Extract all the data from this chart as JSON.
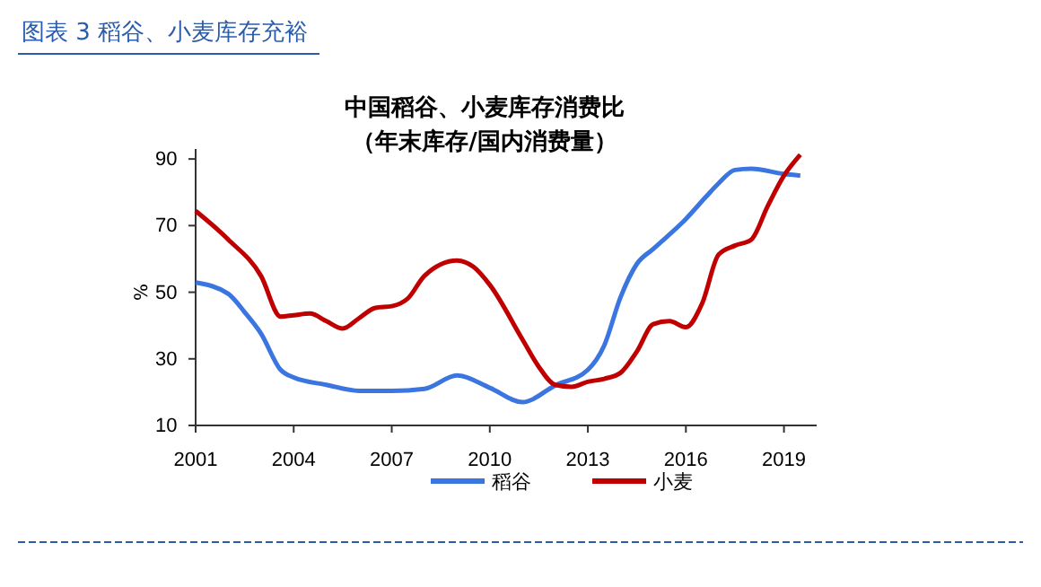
{
  "chart_data": {
    "type": "line",
    "title": "中国稻谷、小麦库存消费比",
    "subtitle": "（年末库存/国内消费量）",
    "ylabel": "%",
    "annotations": [
      "图表 3 稻谷、小麦库存充裕"
    ],
    "xlim": [
      2001,
      2020
    ],
    "xticks": [
      2001,
      2004,
      2007,
      2010,
      2013,
      2016,
      2019
    ],
    "ylim": [
      10,
      93
    ],
    "yticks": [
      10,
      30,
      50,
      70,
      90
    ],
    "grid": false,
    "legend": "bottom",
    "marker": "none",
    "line_style": "solid",
    "series": [
      {
        "name": "稻谷",
        "color": "#3a75e0",
        "x": [
          2001,
          2002,
          2002.5,
          2003,
          2003.6,
          2004,
          2005,
          2006,
          2007,
          2008,
          2009,
          2010,
          2011,
          2012,
          2013,
          2013.5,
          2014,
          2014.5,
          2015,
          2016,
          2016.6,
          2017,
          2017.5,
          2018,
          2019,
          2019.5
        ],
        "values": [
          52.9,
          49.5,
          44,
          37.6,
          26.7,
          24.4,
          22.2,
          20.4,
          20.4,
          21,
          25,
          21.3,
          17,
          22,
          26.7,
          34,
          48.5,
          58.5,
          63,
          72,
          78.5,
          82.7,
          86.7,
          87.1,
          85.5,
          85
        ]
      },
      {
        "name": "小麦",
        "color": "#c00000",
        "x": [
          2001,
          2002,
          2003,
          2003.6,
          2004,
          2004.5,
          2005,
          2005.5,
          2006,
          2006.5,
          2007,
          2007.5,
          2008,
          2009,
          2009.5,
          2010,
          2011,
          2011.5,
          2012,
          2012.5,
          2013,
          2013.5,
          2014,
          2014.5,
          2015,
          2015.5,
          2016,
          2016.5,
          2017,
          2017.5,
          2018,
          2018.5,
          2019,
          2019.5
        ],
        "values": [
          74.4,
          65.8,
          54.9,
          42.7,
          43.1,
          43.6,
          41.3,
          39.1,
          42.2,
          45.3,
          45.8,
          48.2,
          54.9,
          59.5,
          57.6,
          52.2,
          35.8,
          27.6,
          22.2,
          21.6,
          23.1,
          24,
          25.8,
          32.2,
          40.4,
          41.3,
          39.5,
          46.7,
          61.3,
          64,
          65.8,
          75.8,
          85,
          91.3
        ]
      }
    ]
  }
}
